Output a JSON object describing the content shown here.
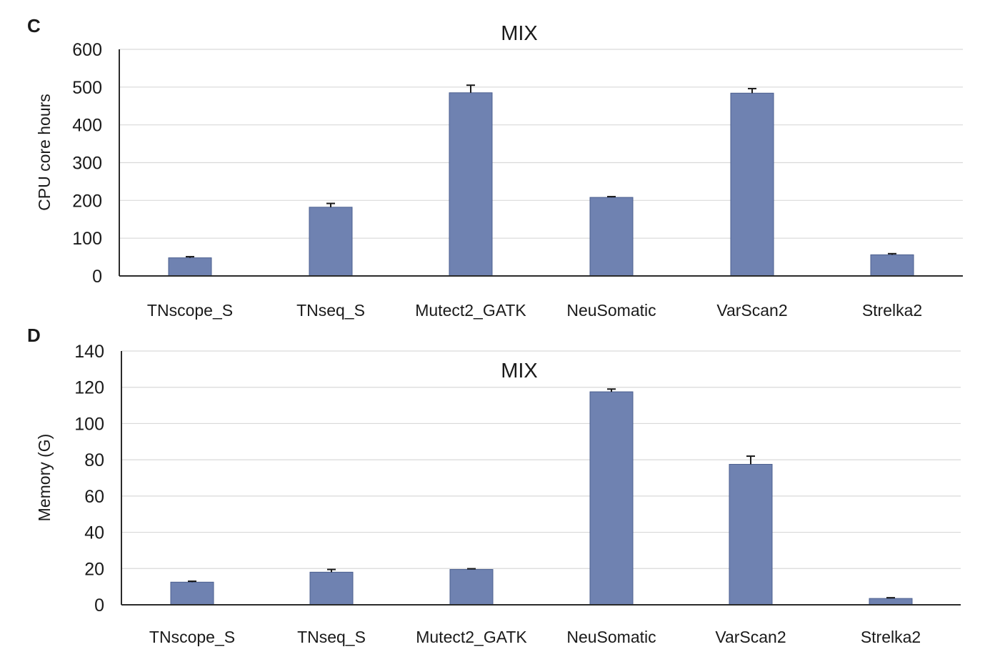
{
  "bar_color": "#6f82b1",
  "chart_data": [
    {
      "panel": "C",
      "type": "bar",
      "title": "MIX",
      "ylabel": "CPU core hours",
      "xlabel": "",
      "ylim": [
        0,
        600
      ],
      "yticks": [
        0,
        100,
        200,
        300,
        400,
        500,
        600
      ],
      "grid": true,
      "categories": [
        "TNscope_S",
        "TNseq_S",
        "Mutect2_GATK",
        "NeuSomatic",
        "VarScan2",
        "Strelka2"
      ],
      "values": [
        48,
        182,
        485,
        208,
        484,
        56
      ],
      "errors": [
        3,
        10,
        20,
        2,
        12,
        3
      ]
    },
    {
      "panel": "D",
      "type": "bar",
      "title": "MIX",
      "ylabel": "Memory (G)",
      "xlabel": "",
      "ylim": [
        0,
        140
      ],
      "yticks": [
        0,
        20,
        40,
        60,
        80,
        100,
        120,
        140
      ],
      "grid": true,
      "categories": [
        "TNscope_S",
        "TNseq_S",
        "Mutect2_GATK",
        "NeuSomatic",
        "VarScan2",
        "Strelka2"
      ],
      "values": [
        12.5,
        18,
        19.5,
        117.5,
        77.5,
        3.5
      ],
      "errors": [
        0.5,
        1.5,
        0.4,
        1.5,
        4.5,
        0.4
      ]
    }
  ]
}
